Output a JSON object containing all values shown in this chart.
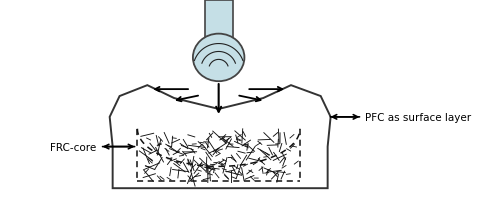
{
  "bg_color": "#ffffff",
  "ball_color": "#c5dfe6",
  "ball_edge_color": "#444444",
  "rod_color": "#c5dfe6",
  "rod_edge_color": "#444444",
  "crown_edge_color": "#333333",
  "dashed_color": "#111111",
  "text_color": "#000000",
  "label_pfc": "PFC as surface layer",
  "label_frc": "FRC-core",
  "figsize": [
    5.0,
    2.05
  ],
  "dpi": 100
}
